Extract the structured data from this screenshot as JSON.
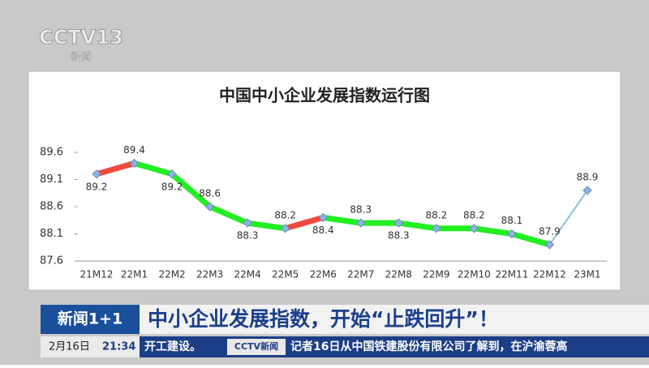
{
  "chart_data": {
    "type": "line",
    "title": "中国中小企业发展指数运行图",
    "categories": [
      "21M12",
      "22M1",
      "22M2",
      "22M3",
      "22M4",
      "22M5",
      "22M6",
      "22M7",
      "22M8",
      "22M9",
      "22M10",
      "22M11",
      "22M12",
      "23M1"
    ],
    "values": [
      89.2,
      89.4,
      89.2,
      88.6,
      88.3,
      88.2,
      88.4,
      88.3,
      88.3,
      88.2,
      88.2,
      88.1,
      87.9,
      88.9
    ],
    "segment_colors": [
      "#ee4a3c",
      "#22ee22",
      "#22ee22",
      "#22ee22",
      "#22ee22",
      "#ee4a3c",
      "#22ee22",
      "#22ee22",
      "#22ee22",
      "#22ee22",
      "#22ee22",
      "#22ee22",
      "#8cc0e0"
    ],
    "marker_color": "#8db3e2",
    "ylim": [
      87.6,
      89.6
    ],
    "yticks": [
      87.6,
      88.1,
      88.6,
      89.1,
      89.6
    ]
  },
  "broadcast": {
    "logo": "CCTV13",
    "logo_sub": "新闻",
    "program": "新闻1+1",
    "headline": "中小企业发展指数，开始“止跌回升”！",
    "date": "2月16日",
    "time": "21:34",
    "ticker_left": "开工建设。",
    "ticker_logo": "CCTV新闻",
    "ticker": "记者16日从中国铁建股份有限公司了解到，在沪渝蓉高"
  }
}
